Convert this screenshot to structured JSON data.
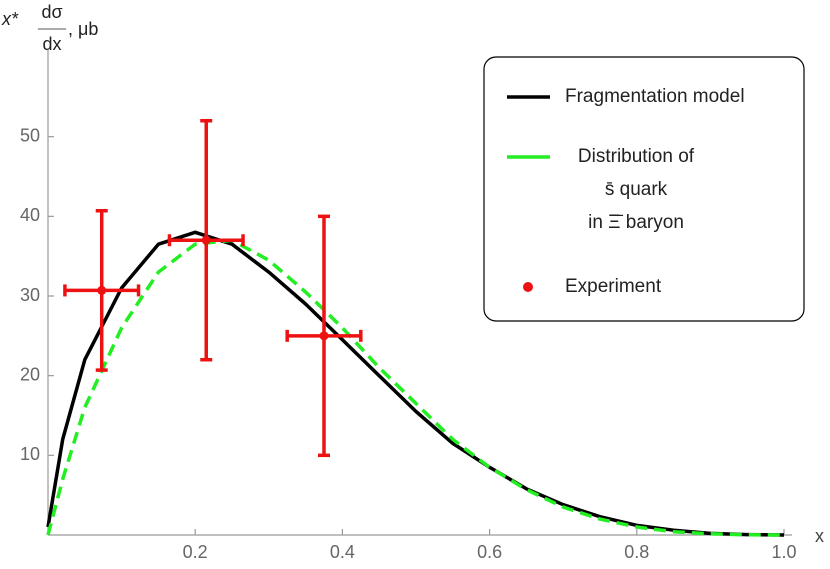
{
  "chart_data": {
    "type": "line",
    "y_label": {
      "prefix": "x*",
      "numerator": "dσ",
      "denominator": "dx",
      "suffix": ", μb"
    },
    "x_label": "x",
    "xlim": [
      0,
      1.0
    ],
    "ylim": [
      0,
      60
    ],
    "xticks": [
      0.2,
      0.4,
      0.6,
      0.8,
      {
        "value": 1.0,
        "label": "1.0"
      }
    ],
    "yticks": [
      10,
      20,
      30,
      40,
      50
    ],
    "series": [
      {
        "name": "Fragmentation model",
        "color": "#000000",
        "style": "solid",
        "x": [
          0,
          0.02,
          0.05,
          0.1,
          0.15,
          0.2,
          0.25,
          0.3,
          0.35,
          0.4,
          0.45,
          0.5,
          0.55,
          0.6,
          0.65,
          0.7,
          0.75,
          0.8,
          0.85,
          0.9,
          0.95,
          1.0
        ],
        "values": [
          1,
          12,
          22,
          31,
          36.5,
          38,
          36.5,
          33,
          29,
          24.5,
          20,
          15.5,
          11.5,
          8.5,
          5.8,
          3.8,
          2.3,
          1.2,
          0.6,
          0.2,
          0.05,
          0
        ]
      },
      {
        "name": "Distribution of\ns̄ quark\nin Ξ̄ baryon",
        "color": "#22ee22",
        "style": "dashed",
        "x": [
          0,
          0.02,
          0.05,
          0.1,
          0.15,
          0.2,
          0.25,
          0.3,
          0.35,
          0.4,
          0.45,
          0.5,
          0.55,
          0.6,
          0.65,
          0.7,
          0.75,
          0.8,
          0.85,
          0.9,
          0.95,
          1.0
        ],
        "values": [
          0,
          7,
          16,
          26,
          33,
          36.5,
          37,
          34.5,
          30.5,
          26,
          21,
          16.5,
          12,
          8.5,
          5.7,
          3.5,
          2,
          1,
          0.4,
          0.15,
          0.03,
          0
        ]
      },
      {
        "name": "Experiment",
        "color": "#ee1111",
        "style": "points",
        "x": [
          0.073,
          0.215,
          0.375
        ],
        "values": [
          30.7,
          37,
          25
        ],
        "x_err": [
          0.05,
          0.05,
          0.05
        ],
        "y_err": [
          10,
          15,
          15
        ]
      }
    ]
  }
}
